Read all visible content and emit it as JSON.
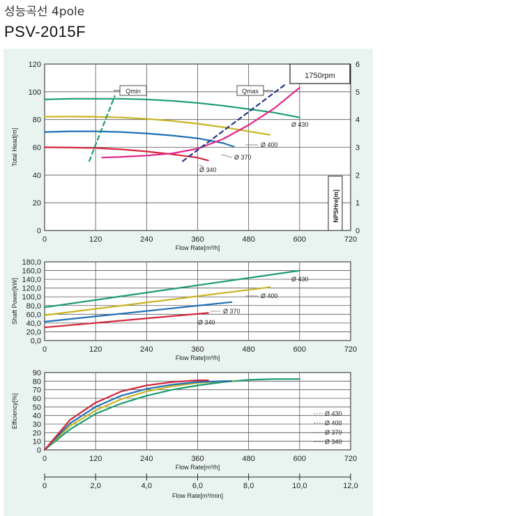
{
  "header": {
    "title": "성능곡선 4pole",
    "model": "PSV-2015F"
  },
  "colors": {
    "d430": "#1a9c6e",
    "d400": "#c8b420",
    "d370": "#1f6fb5",
    "d340": "#d2263a",
    "npsh": "#e0248a",
    "qline": "#1a9c6e",
    "qmaxline": "#24367f",
    "bg": "#e9f4f1",
    "grid": "#555555"
  },
  "chart_data": [
    {
      "type": "line",
      "ylabel": "Total Head[m]",
      "xlabel": "Flow Rate[m³/h]",
      "y2label": "NPSHre[m]",
      "xlim": [
        0,
        720
      ],
      "ylim": [
        0,
        120
      ],
      "y2lim": [
        0,
        6
      ],
      "xticks": [
        "0",
        "120",
        "240",
        "360",
        "480",
        "600",
        "720"
      ],
      "yticks": [
        "0",
        "20",
        "40",
        "60",
        "80",
        "100",
        "120"
      ],
      "y2ticks": [
        "0",
        "1",
        "2",
        "3",
        "4",
        "5",
        "6"
      ],
      "badge": "1750rpm",
      "qmin_label": "Qmin",
      "qmax_label": "Qmax",
      "series": [
        {
          "name": "Ø 430",
          "key": "d430",
          "x": [
            0,
            60,
            120,
            180,
            240,
            300,
            360,
            420,
            480,
            540,
            600
          ],
          "y": [
            94.5,
            95,
            95,
            95,
            94.5,
            93.5,
            92,
            90,
            87.5,
            85,
            81.5
          ]
        },
        {
          "name": "Ø 400",
          "key": "d400",
          "x": [
            0,
            60,
            120,
            180,
            240,
            300,
            360,
            420,
            480,
            530
          ],
          "y": [
            82,
            82.2,
            82,
            81.5,
            80.5,
            79,
            77,
            74.5,
            71.5,
            69
          ]
        },
        {
          "name": "Ø 370",
          "key": "d370",
          "x": [
            0,
            60,
            120,
            180,
            240,
            300,
            360,
            420,
            445
          ],
          "y": [
            71,
            71.5,
            71.5,
            71,
            70,
            68.5,
            66.5,
            63,
            60.5
          ]
        },
        {
          "name": "Ø 340",
          "key": "d340",
          "x": [
            0,
            60,
            120,
            180,
            240,
            300,
            360,
            385
          ],
          "y": [
            60,
            59.8,
            59.5,
            58.5,
            57,
            55,
            52.5,
            50.5
          ]
        },
        {
          "name": "NPSHre",
          "key": "npsh",
          "axis": "y2",
          "x": [
            135,
            180,
            240,
            300,
            360,
            420,
            480,
            540,
            600
          ],
          "y": [
            2.63,
            2.65,
            2.7,
            2.78,
            2.95,
            3.3,
            3.8,
            4.4,
            5.15
          ]
        },
        {
          "name": "Qmin",
          "key": "qline",
          "dashed": true,
          "x": [
            105,
            165
          ],
          "y": [
            50,
            97
          ]
        },
        {
          "name": "Qmax",
          "key": "qmaxline",
          "dashed": true,
          "x": [
            325,
            565
          ],
          "y": [
            50,
            105
          ]
        }
      ]
    },
    {
      "type": "line",
      "ylabel": "Shaft Power[kW]",
      "xlabel": "Flow Rate[m³/h]",
      "xlim": [
        0,
        720
      ],
      "ylim": [
        0,
        180
      ],
      "xticks": [
        "0",
        "120",
        "240",
        "360",
        "480",
        "600",
        "720"
      ],
      "yticks": [
        "0,0",
        "20,0",
        "40,0",
        "60,0",
        "80,0",
        "100,0",
        "120,0",
        "140,0",
        "160,0",
        "180,0"
      ],
      "series": [
        {
          "name": "Ø 430",
          "key": "d430",
          "x": [
            0,
            600
          ],
          "y": [
            76,
            160
          ]
        },
        {
          "name": "Ø 400",
          "key": "d400",
          "x": [
            0,
            530
          ],
          "y": [
            58,
            122
          ]
        },
        {
          "name": "Ø 370",
          "key": "d370",
          "x": [
            0,
            440
          ],
          "y": [
            43,
            88
          ]
        },
        {
          "name": "Ø 340",
          "key": "d340",
          "x": [
            0,
            385
          ],
          "y": [
            30,
            63
          ]
        }
      ]
    },
    {
      "type": "line",
      "ylabel": "Efficiency[%]",
      "xlabel": "Flow Rate[m³/h]",
      "xlim": [
        0,
        720
      ],
      "ylim": [
        0,
        90
      ],
      "xticks": [
        "0",
        "120",
        "240",
        "360",
        "480",
        "600",
        "720"
      ],
      "yticks": [
        "0",
        "10",
        "20",
        "30",
        "40",
        "50",
        "60",
        "70",
        "80",
        "90"
      ],
      "series": [
        {
          "name": "Ø 430",
          "key": "d430",
          "x": [
            0,
            60,
            120,
            180,
            240,
            300,
            360,
            420,
            480,
            540,
            600
          ],
          "y": [
            0,
            24,
            42,
            54,
            63,
            70,
            75,
            79,
            81.5,
            82.5,
            82.5
          ]
        },
        {
          "name": "Ø 400",
          "key": "d400",
          "x": [
            0,
            60,
            120,
            180,
            240,
            300,
            360,
            420,
            445
          ],
          "y": [
            0,
            28,
            46,
            59,
            68,
            74,
            78,
            80,
            80.5
          ]
        },
        {
          "name": "Ø 370",
          "key": "d370",
          "x": [
            0,
            60,
            120,
            180,
            240,
            300,
            360,
            420,
            440
          ],
          "y": [
            0,
            31,
            50,
            63,
            71,
            76,
            79,
            80,
            80
          ]
        },
        {
          "name": "Ø 340",
          "key": "d340",
          "x": [
            0,
            60,
            120,
            180,
            240,
            300,
            360,
            385
          ],
          "y": [
            0,
            35,
            55,
            68,
            75,
            79,
            81,
            81
          ]
        }
      ],
      "legend_labels": [
        "Ø 430",
        "Ø 400",
        "Ø 370",
        "Ø 340"
      ]
    },
    {
      "type": "axis",
      "xlabel": "Flow Rate[m³/min]",
      "xlim": [
        0,
        12
      ],
      "xticks": [
        "0",
        "2,0",
        "4,0",
        "6,0",
        "8,0",
        "10,0",
        "12,0"
      ]
    }
  ]
}
